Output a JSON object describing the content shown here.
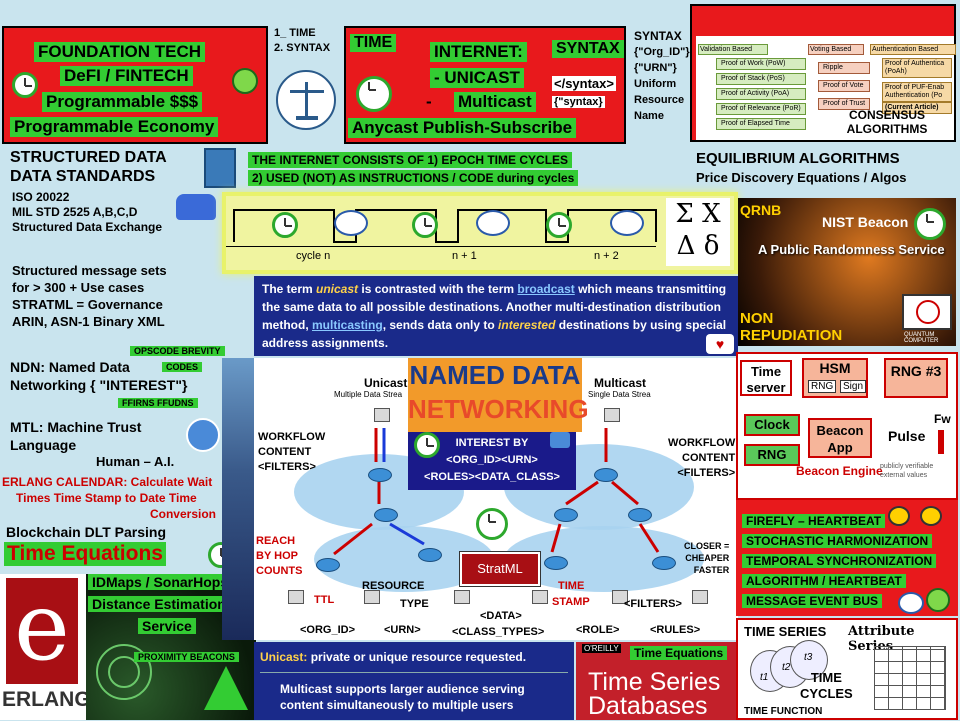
{
  "top_left": {
    "lines": [
      "FOUNDATION  TECH",
      "DeFI / FINTECH",
      "Programmable $$$",
      "Programmable Economy"
    ]
  },
  "time_syntax": {
    "line1": "1_ TIME",
    "line2": "2. SYNTAX"
  },
  "internet_box": {
    "time": "TIME",
    "internet": "INTERNET:",
    "unicast": "- UNICAST",
    "dash": "-",
    "multicast": "Multicast",
    "anycast": "Anycast Publish-Subscribe",
    "syntax": "SYNTAX",
    "syntax_tag": "</syntax>",
    "syntax_q": "{\"syntax}"
  },
  "urn": {
    "title": "SYNTAX",
    "lines": [
      "{\"Org_ID\"}",
      "{\"URN\"}",
      "Uniform",
      "Resource",
      "Name"
    ]
  },
  "consensus": {
    "headers": [
      "Validation Based",
      "Voting Based",
      "Authentication Based"
    ],
    "validation": [
      "Proof of Work (PoW)",
      "Proof of Stack (PoS)",
      "Proof of Activity (PoA)",
      "Proof of Relevance (PoR)",
      "Proof of Elapsed Time"
    ],
    "voting": [
      "Ripple",
      "Proof of Vote",
      "Proof of Trust"
    ],
    "auth": [
      "Proof of Authentica (PoAh)",
      "Proof of PUF-Enab Authentication (Po",
      "(Current Article)"
    ],
    "label": "CONSENSUS ALGORITHMS"
  },
  "structured": {
    "title1": "STRUCTURED DATA",
    "title2": "DATA STANDARDS",
    "lines": [
      "ISO 20022",
      "MIL STD 2525 A,B,C,D",
      "Structured  Data Exchange"
    ]
  },
  "epoch": {
    "line1": "THE INTERNET CONSISTS OF 1) EPOCH TIME CYCLES",
    "line2": "2) USED (NOT) AS INSTRUCTIONS / CODE during cycles",
    "cycles": [
      "cycle n",
      "n + 1",
      "n + 2"
    ],
    "symbols": [
      "Σ",
      "Χ",
      "Δ",
      "δ"
    ]
  },
  "equilibrium": {
    "title": "EQUILIBRIUM ALGORITHMS",
    "subtitle": "Price Discovery Equations / Algos"
  },
  "messages": {
    "lines": [
      "Structured message sets",
      "for > 300 + Use cases",
      "STRATML = Governance",
      "ARIN, ASN-1 Binary XML"
    ]
  },
  "unicast_text": {
    "p1": "The term ",
    "w1": "unicast",
    "p2": " is contrasted with the term ",
    "w2": "broadcast",
    "p3": " which means transmitting the same data to all possible destinations. Another multi-destination distribution method, ",
    "w3": "multicasting",
    "p4": ", sends data only to ",
    "w4": "interested",
    "p5": " destinations by using special address assignments."
  },
  "nist": {
    "qrnb": "QRNB",
    "beacon": "NIST Beacon",
    "service": "A Public Randomness Service",
    "quantum": "QUANTUM COMPUTER"
  },
  "non_rep": {
    "line1": "NON",
    "line2": "REPUDIATION"
  },
  "ndn": {
    "line1": "NDN: Named  Data",
    "line2": "Networking { \"INTEREST\"}",
    "tag1": "OPSCODE BREVITY",
    "tag2": "CODES",
    "tag3": "FFIRNS FFUDNS"
  },
  "mtl": {
    "line1": "MTL: Machine Trust",
    "line2": "Language",
    "line3": "Human – A.I."
  },
  "erlang_cal": {
    "line1": "ERLANG CALENDAR: Calculate Wait",
    "line2": "Times Time Stamp to Date Time",
    "line3": "Conversion"
  },
  "blockchain": "Blockchain DLT Parsing",
  "time_eq": "Time Equations",
  "idmaps": {
    "line1": "IDMaps / SonarHops",
    "line2": "Distance Estimation",
    "line3": "Service"
  },
  "proximity": "PROXIMITY  BEACONS",
  "erlang_logo": "ERLANG",
  "network": {
    "named1": "NAMED DATA",
    "named2": "NETWORKING",
    "unicast_title": "Unicast",
    "unicast_sub": "Multiple Data Strea",
    "multicast_title": "Multicast",
    "multicast_sub": "Single Data Strea",
    "interest1": "INTEREST BY",
    "interest2": "<ORG_ID><URN>",
    "interest3": "<ROLES><DATA_CLASS>",
    "workflow_l": [
      "WORKFLOW",
      "CONTENT",
      "<FILTERS>"
    ],
    "workflow_r": [
      "WORKFLOW",
      "CONTENT",
      "<FILTERS>"
    ],
    "reach": [
      "REACH",
      "BY HOP",
      "COUNTS"
    ],
    "closer": [
      "CLOSER =",
      "CHEAPER",
      "FASTER"
    ],
    "stratml": "StratML",
    "ttl": "TTL",
    "resource": "RESOURCE",
    "type": "TYPE",
    "time": "TIME",
    "stamp": "STAMP",
    "filters": "<FILTERS>",
    "bottom": [
      "<ORG_ID>",
      "<URN>",
      "<DATA>",
      "<CLASS_TYPES>",
      "<ROLE>",
      "<RULES>"
    ]
  },
  "unicast_bar": {
    "u1": "Unicast: ",
    "u2": "private or unique resource requested.",
    "m": "Multicast supports larger audience serving content simultaneously to multiple users"
  },
  "oreilly": {
    "brand": "O'REILLY",
    "title1": "Time Series",
    "title2": "Databases",
    "tag": "Time Equations"
  },
  "beacon_engine": {
    "time_server": "Time server",
    "hsm": "HSM",
    "rng": "RNG",
    "sign": "Sign",
    "rng3": "RNG #3",
    "clock": "Clock",
    "beacon_app": "Beacon App",
    "pulse": "Pulse",
    "fw": "Fw",
    "rng2": "RNG",
    "engine": "Beacon Engine",
    "fine": "publicly verifiable external values"
  },
  "firefly": {
    "lines": [
      "FIREFLY – HEARTBEAT",
      "STOCHASTIC HARMONIZATION",
      "TEMPORAL SYNCHRONIZATION",
      "ALGORITHM / HEARTBEAT",
      "MESSAGE EVENT BUS"
    ]
  },
  "time_series": {
    "title": "TIME SERIES",
    "attr": "Attribute Series",
    "cycles1": "TIME",
    "cycles2": "CYCLES",
    "function": "TIME FUNCTION",
    "t1": "t1",
    "t2": "t2",
    "t3": "t3"
  }
}
